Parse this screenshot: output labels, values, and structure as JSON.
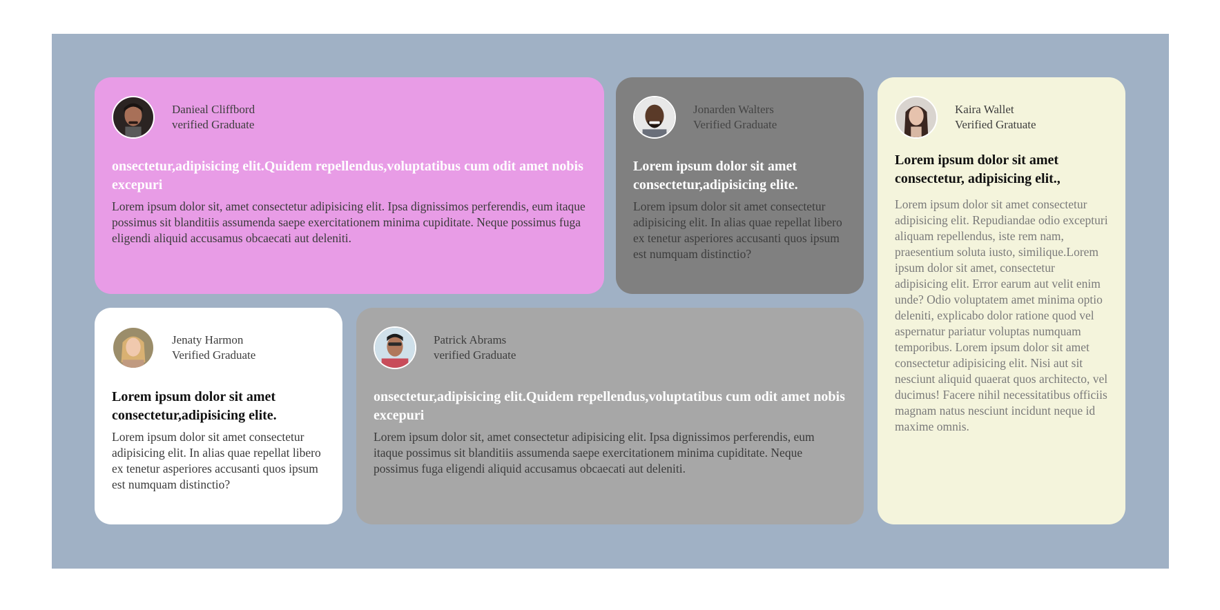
{
  "cards": [
    {
      "name": "Danieal Cliffbord",
      "role": "verified Graduate",
      "title": "onsectetur,adipisicing elit.Quidem repellendus,voluptatibus cum odit amet nobis excepuri",
      "body": "Lorem ipsum dolor sit, amet consectetur adipisicing elit. Ipsa dignissimos perferendis, eum itaque possimus sit blanditiis assumenda saepe exercitationem minima cupiditate. Neque possimus fuga eligendi aliquid accusamus obcaecati aut deleniti.",
      "color": "#e89ce6",
      "avatar_icon": "man-avatar-icon"
    },
    {
      "name": "Jonarden Walters",
      "role": "Verified Graduate",
      "title": "Lorem ipsum dolor sit amet consectetur,adipisicing elite.",
      "body": "Lorem ipsum dolor sit amet consectetur adipisicing elit. In alias quae repellat libero ex tenetur asperiores accusanti quos ipsum est numquam distinctio?",
      "color": "#808080",
      "avatar_icon": "man-avatar-icon"
    },
    {
      "name": "Kaira Wallet",
      "role": "Verified Gratuate",
      "title": "Lorem ipsum dolor sit amet consectetur, adipisicing elit.,",
      "body": "Lorem ipsum dolor sit amet consectetur adipisicing elit. Repudiandae odio excepturi aliquam repellendus, iste rem nam, praesentium soluta iusto, similique.Lorem ipsum dolor sit amet, consectetur adipisicing elit. Error earum aut velit enim unde? Odio voluptatem amet minima optio deleniti, explicabo dolor ratione quod vel aspernatur pariatur voluptas numquam temporibus. Lorem ipsum dolor sit amet consectetur adipisicing elit. Nisi aut sit nesciunt aliquid quaerat quos architecto, vel ducimus! Facere nihil necessitatibus officiis magnam natus nesciunt incidunt neque id maxime omnis.",
      "color": "#f4f4dc",
      "avatar_icon": "woman-avatar-icon"
    },
    {
      "name": "Jenaty Harmon",
      "role": "Verified Graduate",
      "title": "Lorem ipsum dolor sit amet consectetur,adipisicing elite.",
      "body": "Lorem ipsum dolor sit amet consectetur adipisicing elit. In alias quae repellat libero ex tenetur asperiores accusanti quos ipsum est numquam distinctio?",
      "color": "#ffffff",
      "avatar_icon": "woman-avatar-icon"
    },
    {
      "name": "Patrick Abrams",
      "role": "verified Graduate",
      "title": "onsectetur,adipisicing elit.Quidem repellendus,voluptatibus cum odit amet nobis excepuri",
      "body": "Lorem ipsum dolor sit, amet consectetur adipisicing elit. Ipsa dignissimos perferendis, eum itaque possimus sit blanditiis assumenda saepe exercitationem minima cupiditate. Neque possimus fuga eligendi aliquid accusamus obcaecati aut deleniti.",
      "color": "#a7a7a7",
      "avatar_icon": "man-avatar-icon"
    }
  ],
  "background_color": "#a0b1c5"
}
